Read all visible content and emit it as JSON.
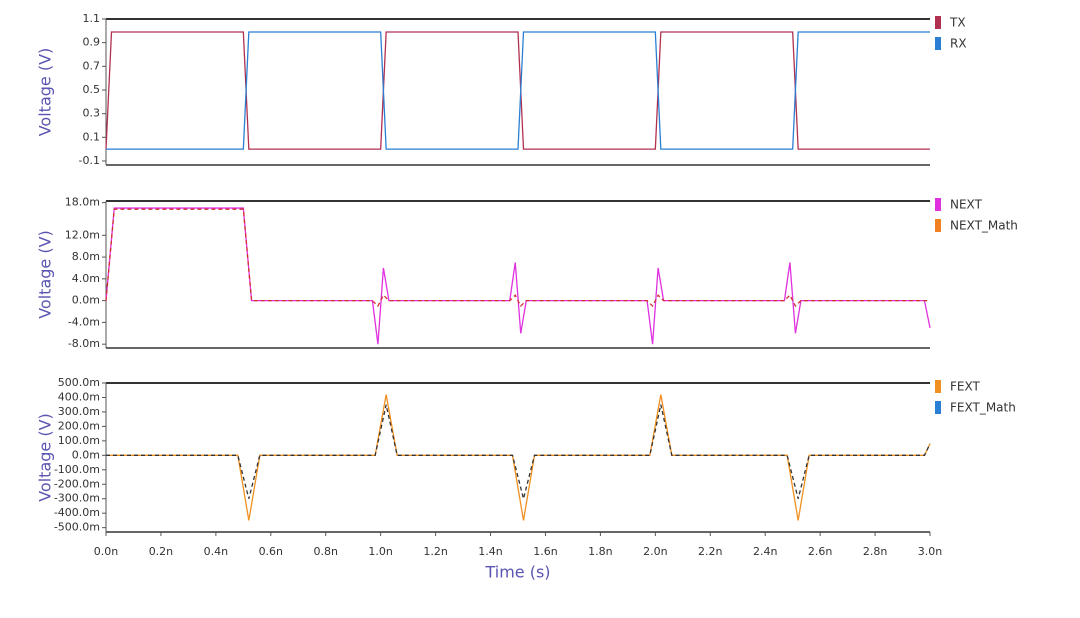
{
  "chart_data": [
    {
      "type": "line",
      "ylabel": "Voltage (V)",
      "x": [
        0,
        2e-11,
        5e-10,
        5.2e-10,
        1e-09,
        1.02e-09,
        1.5e-09,
        1.52e-09,
        2e-09,
        2.02e-09,
        2.5e-09,
        2.52e-09,
        3e-09
      ],
      "xlim": [
        0,
        3e-09
      ],
      "ylim": [
        -0.134,
        1.1
      ],
      "yticks": [
        1.1,
        0.9,
        0.7,
        0.5,
        0.3,
        0.1,
        -0.1
      ],
      "series": [
        {
          "name": "TX",
          "color": "#b03050",
          "values": [
            0,
            0.99,
            0.99,
            0,
            0,
            0.99,
            0.99,
            0,
            0,
            0.99,
            0.99,
            0,
            0
          ]
        },
        {
          "name": "RX",
          "color": "#2a7fd4",
          "values": [
            0,
            0,
            0,
            0.99,
            0.99,
            0,
            0,
            0.99,
            0.99,
            0,
            0,
            0.99,
            0.99
          ]
        }
      ]
    },
    {
      "type": "line",
      "ylabel": "Voltage (V)",
      "x": [
        0,
        3e-11,
        5e-10,
        5.3e-10,
        9.7e-10,
        9.9e-10,
        1.01e-09,
        1.03e-09,
        1.05e-09,
        1.47e-09,
        1.49e-09,
        1.51e-09,
        1.53e-09,
        1.55e-09,
        1.97e-09,
        1.99e-09,
        2.01e-09,
        2.03e-09,
        2.05e-09,
        2.47e-09,
        2.49e-09,
        2.51e-09,
        2.53e-09,
        2.55e-09,
        2.98e-09,
        3e-09
      ],
      "xlim": [
        0,
        3e-09
      ],
      "ylim": [
        -0.0087,
        0.0183
      ],
      "yticks": [
        {
          "value": 0.018,
          "label": "18.0m"
        },
        {
          "value": 0.012,
          "label": "12.0m"
        },
        {
          "value": 0.008,
          "label": "8.0m"
        },
        {
          "value": 0.004,
          "label": "4.0m"
        },
        {
          "value": 0,
          "label": "0.0m"
        },
        {
          "value": -0.004,
          "label": "-4.0m"
        },
        {
          "value": -0.008,
          "label": "-8.0m"
        }
      ],
      "series": [
        {
          "name": "NEXT",
          "color": "#e030e0",
          "values": [
            0,
            0.017,
            0.017,
            0,
            0,
            -0.008,
            0.006,
            0,
            0,
            0,
            0.007,
            -0.006,
            0,
            0,
            0,
            -0.008,
            0.006,
            0,
            0,
            0,
            0.007,
            -0.006,
            0,
            0,
            0,
            -0.005
          ]
        },
        {
          "name": "NEXT_Math",
          "color": "#f08020",
          "dashed": true,
          "values": [
            0,
            0.0168,
            0.0168,
            0,
            0,
            -0.001,
            0.001,
            0,
            0,
            0,
            0.001,
            -0.001,
            0,
            0,
            0,
            -0.001,
            0.001,
            0,
            0,
            0,
            0.001,
            -0.001,
            0,
            0,
            0,
            0
          ]
        }
      ]
    },
    {
      "type": "line",
      "ylabel": "Voltage (V)",
      "xlabel": "Time (s)",
      "x": [
        0,
        4.8e-10,
        5.2e-10,
        5.6e-10,
        9.8e-10,
        1.02e-09,
        1.06e-09,
        1.48e-09,
        1.52e-09,
        1.56e-09,
        1.98e-09,
        2.02e-09,
        2.06e-09,
        2.48e-09,
        2.52e-09,
        2.56e-09,
        2.98e-09,
        3e-09
      ],
      "xlim": [
        0,
        3e-09
      ],
      "ylim": [
        -0.53,
        0.5
      ],
      "xticks": [
        {
          "value": 0,
          "label": "0.0n"
        },
        {
          "value": 2e-10,
          "label": "0.2n"
        },
        {
          "value": 4e-10,
          "label": "0.4n"
        },
        {
          "value": 6e-10,
          "label": "0.6n"
        },
        {
          "value": 8e-10,
          "label": "0.8n"
        },
        {
          "value": 1e-09,
          "label": "1.0n"
        },
        {
          "value": 1.2e-09,
          "label": "1.2n"
        },
        {
          "value": 1.4e-09,
          "label": "1.4n"
        },
        {
          "value": 1.6e-09,
          "label": "1.6n"
        },
        {
          "value": 1.8e-09,
          "label": "1.8n"
        },
        {
          "value": 2e-09,
          "label": "2.0n"
        },
        {
          "value": 2.2e-09,
          "label": "2.2n"
        },
        {
          "value": 2.4e-09,
          "label": "2.4n"
        },
        {
          "value": 2.6e-09,
          "label": "2.6n"
        },
        {
          "value": 2.8e-09,
          "label": "2.8n"
        },
        {
          "value": 3e-09,
          "label": "3.0n"
        }
      ],
      "yticks": [
        {
          "value": 0.5,
          "label": "500.0m"
        },
        {
          "value": 0.4,
          "label": "400.0m"
        },
        {
          "value": 0.3,
          "label": "300.0m"
        },
        {
          "value": 0.2,
          "label": "200.0m"
        },
        {
          "value": 0.1,
          "label": "100.0m"
        },
        {
          "value": 0,
          "label": "0.0m"
        },
        {
          "value": -0.1,
          "label": "-100.0m"
        },
        {
          "value": -0.2,
          "label": "-200.0m"
        },
        {
          "value": -0.3,
          "label": "-300.0m"
        },
        {
          "value": -0.4,
          "label": "-400.0m"
        },
        {
          "value": -0.5,
          "label": "-500.0m"
        }
      ],
      "series": [
        {
          "name": "FEXT",
          "color": "#f09020",
          "values": [
            0,
            0,
            -0.45,
            0,
            0,
            0.42,
            0,
            0,
            -0.45,
            0,
            0,
            0.42,
            0,
            0,
            -0.45,
            0,
            0,
            0.08
          ]
        },
        {
          "name": "FEXT_Math",
          "color": "#2a7fd4",
          "dashed": true,
          "values": [
            0,
            0,
            -0.3,
            0,
            0,
            0.35,
            0,
            0,
            -0.3,
            0,
            0,
            0.35,
            0,
            0,
            -0.3,
            0,
            0,
            0.08
          ]
        }
      ]
    }
  ]
}
